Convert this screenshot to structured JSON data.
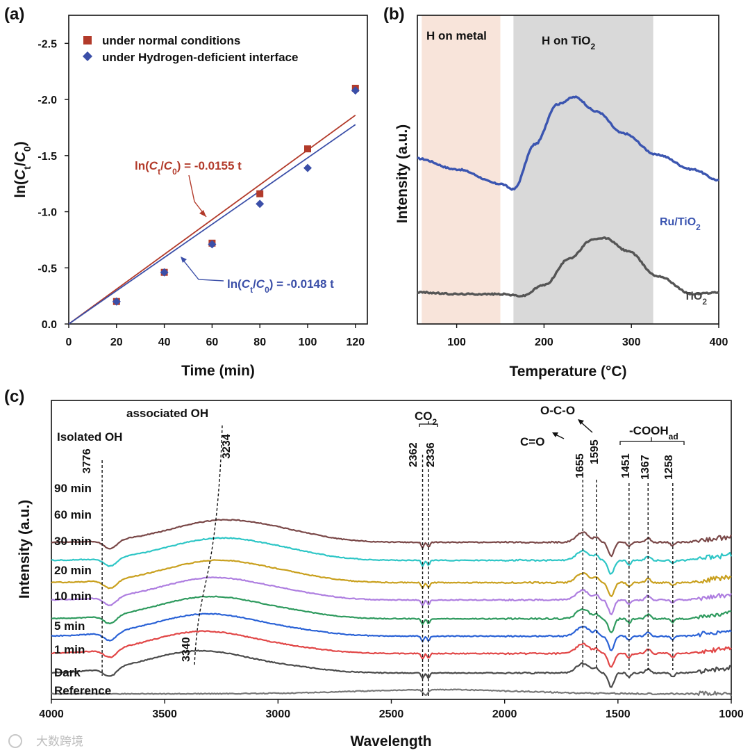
{
  "chart_data": [
    {
      "panel": "(a)",
      "type": "scatter",
      "xlabel": "Time (min)",
      "ylabel": "ln(Ct/C0)",
      "xlim": [
        0,
        125
      ],
      "ylim": [
        0,
        -2.75
      ],
      "xticks": [
        "0",
        "20",
        "40",
        "60",
        "80",
        "100",
        "120"
      ],
      "yticks": [
        "0.0",
        "-0.5",
        "-1.0",
        "-1.5",
        "-2.0",
        "-2.5"
      ],
      "legend_position": "top-left",
      "series": [
        {
          "name": "under normal conditions",
          "marker": "square",
          "color": "#b23a2a",
          "x": [
            20,
            40,
            60,
            80,
            100,
            120
          ],
          "y": [
            -0.2,
            -0.46,
            -0.72,
            -1.16,
            -1.56,
            -2.1
          ],
          "fit": {
            "slope": -0.0155,
            "label": "ln(Ct/C0) = -0.0155 t"
          }
        },
        {
          "name": "under Hydrogen-deficient interface",
          "marker": "diamond",
          "color": "#3b4fa8",
          "x": [
            20,
            40,
            60,
            80,
            100,
            120
          ],
          "y": [
            -0.2,
            -0.46,
            -0.71,
            -1.07,
            -1.39,
            -2.08
          ],
          "fit": {
            "slope": -0.0148,
            "label": "ln(Ct/C0) = -0.0148 t"
          }
        }
      ]
    },
    {
      "panel": "(b)",
      "type": "line",
      "xlabel": "Temperature (°C)",
      "ylabel": "Intensity (a.u.)",
      "xlim": [
        55,
        400
      ],
      "xticks": [
        "100",
        "200",
        "300",
        "400"
      ],
      "regions": [
        {
          "label": "H on metal",
          "from": 60,
          "to": 150,
          "color": "#f8e4da"
        },
        {
          "label": "H on TiO2",
          "from": 165,
          "to": 325,
          "color": "#d9d9d9"
        }
      ],
      "series": [
        {
          "name": "Ru/TiO2",
          "color": "#3b55b0",
          "x": [
            55,
            100,
            150,
            165,
            190,
            215,
            235,
            260,
            290,
            330,
            370,
            400
          ],
          "y": [
            0.8,
            0.74,
            0.66,
            0.63,
            0.88,
            1.1,
            1.14,
            1.06,
            0.94,
            0.82,
            0.74,
            0.68
          ]
        },
        {
          "name": "TiO2",
          "color": "#555555",
          "x": [
            55,
            100,
            150,
            175,
            200,
            230,
            255,
            270,
            295,
            330,
            370,
            400
          ],
          "y": [
            0.06,
            0.05,
            0.05,
            0.04,
            0.1,
            0.25,
            0.35,
            0.36,
            0.29,
            0.15,
            0.05,
            0.06
          ]
        }
      ]
    },
    {
      "panel": "(c)",
      "type": "line",
      "xlabel": "Wavelength",
      "ylabel": "Intensity (a.u.)",
      "xlim": [
        4000,
        1000
      ],
      "xticks": [
        "4000",
        "3500",
        "3000",
        "2500",
        "2000",
        "1500",
        "1000"
      ],
      "markers": [
        "3776",
        "3234",
        "3340",
        "2362",
        "2336",
        "1655",
        "1595",
        "1451",
        "1367",
        "1258"
      ],
      "annotations": [
        "Isolated OH",
        "associated OH",
        "CO2",
        "C=O",
        "O-C-O",
        "-COOHad"
      ],
      "series": [
        {
          "name": "Reference",
          "color": "#777777"
        },
        {
          "name": "Dark",
          "color": "#4a4a4a"
        },
        {
          "name": "1 min",
          "color": "#e14646"
        },
        {
          "name": "5 min",
          "color": "#2a62d6"
        },
        {
          "name": "10 min",
          "color": "#2e9a5e"
        },
        {
          "name": "20 min",
          "color": "#ae7ee0"
        },
        {
          "name": "30 min",
          "color": "#c9a01e"
        },
        {
          "name": "60 min",
          "color": "#2ec6c6"
        },
        {
          "name": "90 min",
          "color": "#7a4848"
        }
      ]
    }
  ],
  "panel_a": {
    "letter": "(a)",
    "ylabel_main": "ln(",
    "ylabel_c1": "C",
    "ylabel_sub1": "t",
    "ylabel_slash": "/",
    "ylabel_c2": "C",
    "ylabel_sub2": "0",
    "ylabel_close": ")",
    "fit1_prefix": "ln(",
    "fit1_c1": "C",
    "fit1_s1": "t",
    "fit1_slash": "/",
    "fit1_c2": "C",
    "fit1_s2": "0",
    "fit1_rest": ") = -0.0155 t",
    "fit2_prefix": "ln(",
    "fit2_c1": "C",
    "fit2_s1": "t",
    "fit2_slash": "/",
    "fit2_c2": "C",
    "fit2_s2": "0",
    "fit2_rest": ") = -0.0148 t"
  },
  "panel_b": {
    "letter": "(b)",
    "region1": "H on metal",
    "region2_main": "H on TiO",
    "region2_sub": "2",
    "ru_main": "Ru/TiO",
    "ru_sub": "2",
    "ti_main": "TiO",
    "ti_sub": "2"
  },
  "panel_c": {
    "letter": "(c)",
    "co2_main": "CO",
    "co2_sub": "2",
    "cooh_main": "-COOH",
    "cooh_sub": "ad"
  },
  "watermark": "大数跨境"
}
